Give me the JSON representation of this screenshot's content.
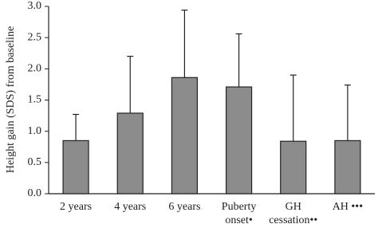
{
  "chart_data": {
    "type": "bar",
    "y_label": "Height gain (SDS) from baseline",
    "categories": [
      "2 years",
      "4 years",
      "6 years",
      "Puberty onset•",
      "GH cessation••",
      "AH •••"
    ],
    "values": [
      0.85,
      1.29,
      1.86,
      1.71,
      0.84,
      0.85
    ],
    "errors": [
      0.42,
      0.91,
      1.08,
      0.85,
      1.06,
      0.89
    ],
    "color": "#8c8c8c",
    "ylim": [
      0,
      3
    ],
    "yticks": [
      {
        "value": 0,
        "label": "0.0"
      },
      0.5,
      {
        "value": 1,
        "label": "1.0"
      },
      1.5,
      {
        "value": 2,
        "label": "2.0"
      },
      2.5,
      {
        "value": 3,
        "label": "3.0"
      }
    ]
  }
}
